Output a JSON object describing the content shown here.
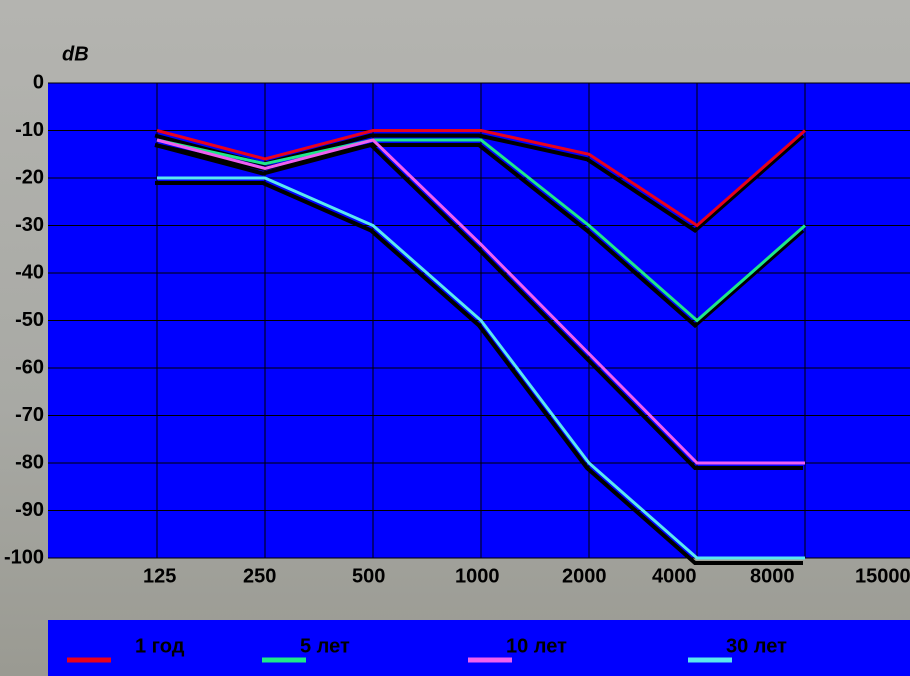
{
  "chart_data": {
    "type": "line",
    "y_label": "dB",
    "categories": [
      "125",
      "250",
      "500",
      "1000",
      "2000",
      "4000",
      "8000",
      "15000"
    ],
    "series": [
      {
        "name": "1 год",
        "color": "#e8001c",
        "values": [
          -10,
          -16,
          -10,
          -10,
          -15,
          -30,
          -10,
          null
        ]
      },
      {
        "name": "5 лет",
        "color": "#1ee88a",
        "values": [
          -12,
          -17,
          -12,
          -12,
          -30,
          -50,
          -30,
          null
        ]
      },
      {
        "name": "10 лет",
        "color": "#f060f0",
        "values": [
          -12,
          -18,
          -12,
          -34,
          -57,
          -80,
          -80,
          null
        ]
      },
      {
        "name": "30 лет",
        "color": "#5ae8f0",
        "values": [
          -20,
          -20,
          -30,
          -50,
          -80,
          -100,
          -100,
          null
        ]
      }
    ],
    "ylim": [
      -100,
      0
    ],
    "yticks": [
      0,
      -10,
      -20,
      -30,
      -40,
      -50,
      -60,
      -70,
      -80,
      -90,
      -100
    ],
    "grid": true
  }
}
